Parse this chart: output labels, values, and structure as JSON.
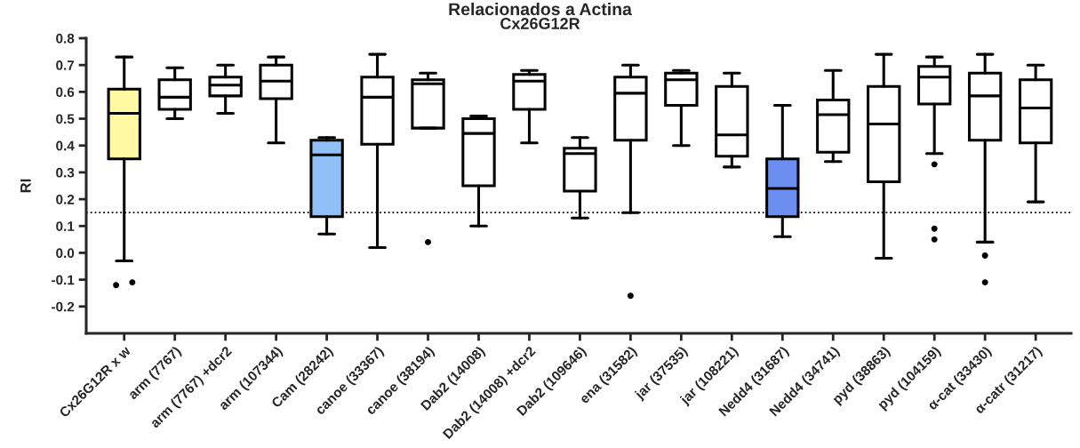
{
  "chart_data": {
    "type": "box",
    "title": "Relacionados a Actina",
    "subtitle": "Cx26G12R",
    "ylabel": "RI",
    "categories": [
      "Cx26G12R x w",
      "arm (7767)",
      "arm (7767) +dcr2",
      "arm (107344)",
      "Cam (28242)",
      "canoe (33367)",
      "canoe (38194)",
      "Dab2 (14008)",
      "Dab2 (14008) +dcr2",
      "Dab2 (109646)",
      "ena (31582)",
      "jar (37535)",
      "jar (108221)",
      "Nedd4 (31687)",
      "Nedd4 (34741)",
      "pyd (38863)",
      "pyd (104159)",
      "α-cat (33430)",
      "α-catr (31217)"
    ],
    "colors": [
      "#fff9a3",
      "#ffffff",
      "#ffffff",
      "#ffffff",
      "#90bff7",
      "#ffffff",
      "#ffffff",
      "#ffffff",
      "#ffffff",
      "#ffffff",
      "#ffffff",
      "#ffffff",
      "#ffffff",
      "#6c8ef0",
      "#ffffff",
      "#ffffff",
      "#ffffff",
      "#ffffff",
      "#ffffff"
    ],
    "boxes": [
      {
        "low": -0.03,
        "q1": 0.35,
        "median": 0.52,
        "q3": 0.61,
        "high": 0.73,
        "outliers": [
          -0.12,
          -0.11
        ]
      },
      {
        "low": 0.5,
        "q1": 0.535,
        "median": 0.58,
        "q3": 0.645,
        "high": 0.69
      },
      {
        "low": 0.52,
        "q1": 0.585,
        "median": 0.625,
        "q3": 0.655,
        "high": 0.7
      },
      {
        "low": 0.41,
        "q1": 0.575,
        "median": 0.64,
        "q3": 0.7,
        "high": 0.73
      },
      {
        "low": 0.07,
        "q1": 0.135,
        "median": 0.365,
        "q3": 0.42,
        "high": 0.43
      },
      {
        "low": 0.02,
        "q1": 0.405,
        "median": 0.58,
        "q3": 0.655,
        "high": 0.74
      },
      {
        "low": 0.465,
        "q1": 0.465,
        "median": 0.63,
        "q3": 0.645,
        "high": 0.67,
        "outliers": [
          0.04
        ]
      },
      {
        "low": 0.1,
        "q1": 0.25,
        "median": 0.445,
        "q3": 0.5,
        "high": 0.51
      },
      {
        "low": 0.41,
        "q1": 0.535,
        "median": 0.64,
        "q3": 0.665,
        "high": 0.68
      },
      {
        "low": 0.13,
        "q1": 0.23,
        "median": 0.37,
        "q3": 0.39,
        "high": 0.43
      },
      {
        "low": 0.15,
        "q1": 0.42,
        "median": 0.595,
        "q3": 0.655,
        "high": 0.7,
        "outliers": [
          -0.16
        ]
      },
      {
        "low": 0.4,
        "q1": 0.55,
        "median": 0.645,
        "q3": 0.67,
        "high": 0.68
      },
      {
        "low": 0.32,
        "q1": 0.36,
        "median": 0.44,
        "q3": 0.62,
        "high": 0.67
      },
      {
        "low": 0.06,
        "q1": 0.135,
        "median": 0.24,
        "q3": 0.35,
        "high": 0.55
      },
      {
        "low": 0.34,
        "q1": 0.375,
        "median": 0.515,
        "q3": 0.57,
        "high": 0.68
      },
      {
        "low": -0.02,
        "q1": 0.265,
        "median": 0.48,
        "q3": 0.62,
        "high": 0.74
      },
      {
        "low": 0.37,
        "q1": 0.555,
        "median": 0.655,
        "q3": 0.695,
        "high": 0.73,
        "outliers": [
          0.33,
          0.09,
          0.05
        ]
      },
      {
        "low": 0.04,
        "q1": 0.42,
        "median": 0.585,
        "q3": 0.67,
        "high": 0.74,
        "outliers": [
          -0.01,
          -0.11
        ]
      },
      {
        "low": 0.19,
        "q1": 0.41,
        "median": 0.54,
        "q3": 0.645,
        "high": 0.7
      }
    ],
    "ylim": [
      -0.3,
      0.8
    ],
    "yticks": [
      -0.2,
      -0.1,
      {
        "value": 0,
        "label": "0.0"
      },
      0.1,
      0.2,
      0.3,
      0.4,
      0.5,
      0.6,
      0.7,
      0.8
    ],
    "ref_lines": [
      {
        "axis": "y",
        "value": 0.15,
        "line_style": "dotted"
      }
    ],
    "grid": false,
    "legend": false
  }
}
